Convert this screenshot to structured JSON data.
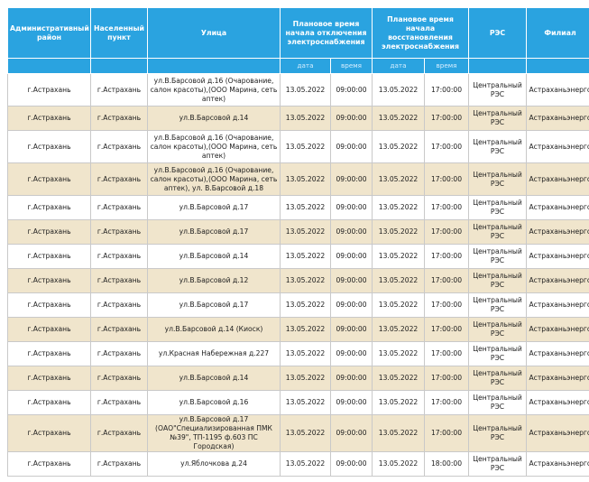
{
  "headers": {
    "district": "Административный район",
    "locality": "Населенный пункт",
    "street": "Улица",
    "off_time": "Плановое время начала отключения электроснабжения",
    "restore_time": "Плановое время начала восстановления электроснабжения",
    "res": "РЭС",
    "branch": "Филиал",
    "sub_date": "дата",
    "sub_time": "время"
  },
  "rows": [
    {
      "district": "г.Астрахань",
      "locality": "г.Астрахань",
      "street": "ул.В.Барсовой д.16 (Очарование, салон красоты),(ООО Марина, сеть аптек)",
      "off_date": "13.05.2022",
      "off_time": "09:00:00",
      "on_date": "13.05.2022",
      "on_time": "17:00:00",
      "res": "Центральный РЭС",
      "branch": "Астраханьэнерго"
    },
    {
      "district": "г.Астрахань",
      "locality": "г.Астрахань",
      "street": "ул.В.Барсовой д.14",
      "off_date": "13.05.2022",
      "off_time": "09:00:00",
      "on_date": "13.05.2022",
      "on_time": "17:00:00",
      "res": "Центральный РЭС",
      "branch": "Астраханьэнерго"
    },
    {
      "district": "г.Астрахань",
      "locality": "г.Астрахань",
      "street": "ул.В.Барсовой д.16 (Очарование, салон красоты),(ООО Марина, сеть аптек)",
      "off_date": "13.05.2022",
      "off_time": "09:00:00",
      "on_date": "13.05.2022",
      "on_time": "17:00:00",
      "res": "Центральный РЭС",
      "branch": "Астраханьэнерго"
    },
    {
      "district": "г.Астрахань",
      "locality": "г.Астрахань",
      "street": "ул.В.Барсовой д.16 (Очарование, салон красоты),(ООО Марина, сеть аптек), ул. В.Барсовой д.18",
      "off_date": "13.05.2022",
      "off_time": "09:00:00",
      "on_date": "13.05.2022",
      "on_time": "17:00:00",
      "res": "Центральный РЭС",
      "branch": "Астраханьэнерго"
    },
    {
      "district": "г.Астрахань",
      "locality": "г.Астрахань",
      "street": "ул.В.Барсовой д.17",
      "off_date": "13.05.2022",
      "off_time": "09:00:00",
      "on_date": "13.05.2022",
      "on_time": "17:00:00",
      "res": "Центральный РЭС",
      "branch": "Астраханьэнерго"
    },
    {
      "district": "г.Астрахань",
      "locality": "г.Астрахань",
      "street": "ул.В.Барсовой д.17",
      "off_date": "13.05.2022",
      "off_time": "09:00:00",
      "on_date": "13.05.2022",
      "on_time": "17:00:00",
      "res": "Центральный РЭС",
      "branch": "Астраханьэнерго"
    },
    {
      "district": "г.Астрахань",
      "locality": "г.Астрахань",
      "street": "ул.В.Барсовой д.14",
      "off_date": "13.05.2022",
      "off_time": "09:00:00",
      "on_date": "13.05.2022",
      "on_time": "17:00:00",
      "res": "Центральный РЭС",
      "branch": "Астраханьэнерго"
    },
    {
      "district": "г.Астрахань",
      "locality": "г.Астрахань",
      "street": "ул.В.Барсовой д.12",
      "off_date": "13.05.2022",
      "off_time": "09:00:00",
      "on_date": "13.05.2022",
      "on_time": "17:00:00",
      "res": "Центральный РЭС",
      "branch": "Астраханьэнерго"
    },
    {
      "district": "г.Астрахань",
      "locality": "г.Астрахань",
      "street": "ул.В.Барсовой д.17",
      "off_date": "13.05.2022",
      "off_time": "09:00:00",
      "on_date": "13.05.2022",
      "on_time": "17:00:00",
      "res": "Центральный РЭС",
      "branch": "Астраханьэнерго"
    },
    {
      "district": "г.Астрахань",
      "locality": "г.Астрахань",
      "street": "ул.В.Барсовой д.14 (Киоск)",
      "off_date": "13.05.2022",
      "off_time": "09:00:00",
      "on_date": "13.05.2022",
      "on_time": "17:00:00",
      "res": "Центральный РЭС",
      "branch": "Астраханьэнерго"
    },
    {
      "district": "г.Астрахань",
      "locality": "г.Астрахань",
      "street": "ул.Красная Набережная д.227",
      "off_date": "13.05.2022",
      "off_time": "09:00:00",
      "on_date": "13.05.2022",
      "on_time": "17:00:00",
      "res": "Центральный РЭС",
      "branch": "Астраханьэнерго"
    },
    {
      "district": "г.Астрахань",
      "locality": "г.Астрахань",
      "street": "ул.В.Барсовой д.14",
      "off_date": "13.05.2022",
      "off_time": "09:00:00",
      "on_date": "13.05.2022",
      "on_time": "17:00:00",
      "res": "Центральный РЭС",
      "branch": "Астраханьэнерго"
    },
    {
      "district": "г.Астрахань",
      "locality": "г.Астрахань",
      "street": "ул.В.Барсовой д.16",
      "off_date": "13.05.2022",
      "off_time": "09:00:00",
      "on_date": "13.05.2022",
      "on_time": "17:00:00",
      "res": "Центральный РЭС",
      "branch": "Астраханьэнерго"
    },
    {
      "district": "г.Астрахань",
      "locality": "г.Астрахань",
      "street": "ул.В.Барсовой д.17 (ОАО\"Специализированная ПМК №39\", ТП-1195 ф.603 ПС Городская)",
      "off_date": "13.05.2022",
      "off_time": "09:00:00",
      "on_date": "13.05.2022",
      "on_time": "17:00:00",
      "res": "Центральный РЭС",
      "branch": "Астраханьэнерго"
    },
    {
      "district": "г.Астрахань",
      "locality": "г.Астрахань",
      "street": "ул.Яблочкова д.24",
      "off_date": "13.05.2022",
      "off_time": "09:00:00",
      "on_date": "13.05.2022",
      "on_time": "18:00:00",
      "res": "Центральный РЭС",
      "branch": "Астраханьэнерго"
    }
  ]
}
